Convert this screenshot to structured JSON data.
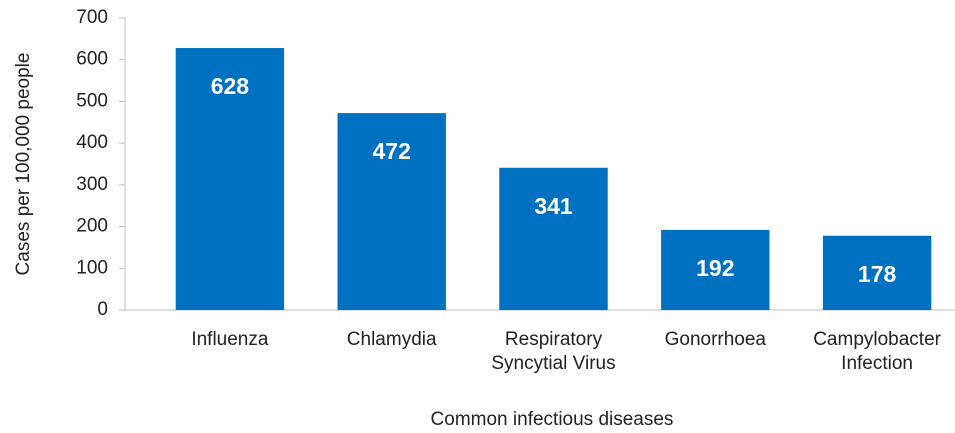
{
  "chart_data": {
    "type": "bar",
    "categories": [
      "Influenza",
      "Chlamydia",
      "Respiratory Syncytial Virus",
      "Gonorrhoea",
      "Campylobacter Infection"
    ],
    "values": [
      628,
      472,
      341,
      192,
      178
    ],
    "color": "#0070c0",
    "x_label": "Common infectious diseases",
    "y_label": "Cases per 100,000 people",
    "ylim": [
      0,
      700
    ],
    "yticks": [
      0,
      100,
      200,
      300,
      400,
      500,
      600,
      700
    ],
    "grid": false
  }
}
